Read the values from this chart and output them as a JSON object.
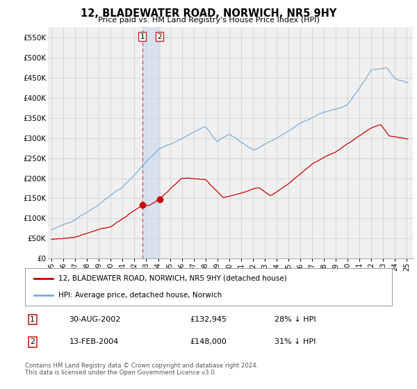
{
  "title": "12, BLADEWATER ROAD, NORWICH, NR5 9HY",
  "subtitle": "Price paid vs. HM Land Registry's House Price Index (HPI)",
  "ylabel_ticks": [
    "£0",
    "£50K",
    "£100K",
    "£150K",
    "£200K",
    "£250K",
    "£300K",
    "£350K",
    "£400K",
    "£450K",
    "£500K",
    "£550K"
  ],
  "ytick_values": [
    0,
    50000,
    100000,
    150000,
    200000,
    250000,
    300000,
    350000,
    400000,
    450000,
    500000,
    550000
  ],
  "ylim": [
    0,
    575000
  ],
  "hpi_color": "#7aaddb",
  "price_color": "#cc0000",
  "vline_color": "#dd4444",
  "vbox_color": "#c8d8ec",
  "transaction1_x": 2002.66,
  "transaction1_price": 132945,
  "transaction2_x": 2004.12,
  "transaction2_price": 148000,
  "legend_line1": "12, BLADEWATER ROAD, NORWICH, NR5 9HY (detached house)",
  "legend_line2": "HPI: Average price, detached house, Norwich",
  "table_row1_num": "1",
  "table_row1_date": "30-AUG-2002",
  "table_row1_price": "£132,945",
  "table_row1_hpi": "28% ↓ HPI",
  "table_row2_num": "2",
  "table_row2_date": "13-FEB-2004",
  "table_row2_price": "£148,000",
  "table_row2_hpi": "31% ↓ HPI",
  "footer": "Contains HM Land Registry data © Crown copyright and database right 2024.\nThis data is licensed under the Open Government Licence v3.0.",
  "xlim_start": 1994.7,
  "xlim_end": 2025.5,
  "background_color": "#f0f0f0",
  "grid_color": "#cccccc"
}
